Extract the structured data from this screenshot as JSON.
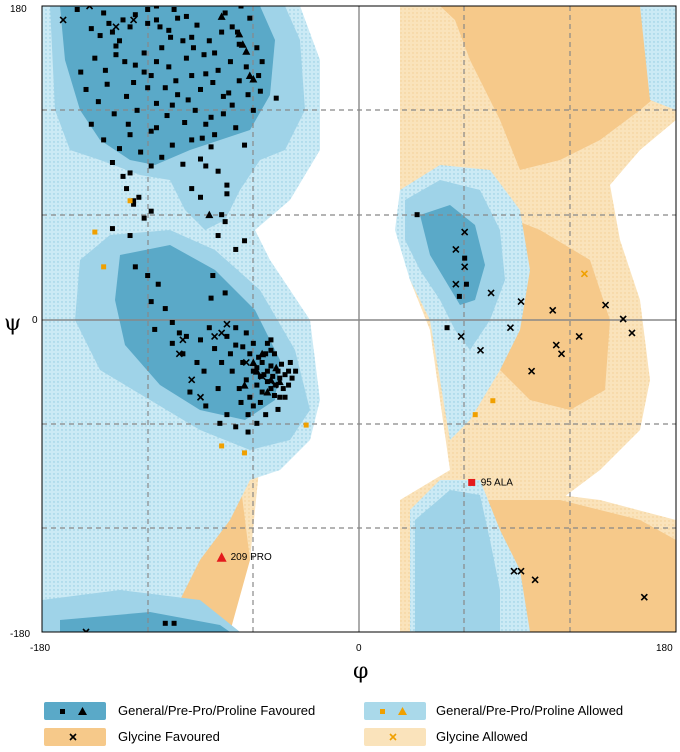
{
  "chart_data": {
    "type": "scatter",
    "title": "",
    "xlabel": "φ",
    "ylabel": "ψ",
    "xlim": [
      -180,
      180
    ],
    "ylim": [
      -180,
      180
    ],
    "x_ticks": [
      "-180",
      "0",
      "180"
    ],
    "y_ticks": [
      "180",
      "0",
      "-180"
    ],
    "grid": "dashed every 60°",
    "colors": {
      "general_favoured": "#5aa9c8",
      "general_allowed": "#aad9ea",
      "glycine_favoured": "#f6c98a",
      "glycine_allowed": "#fae3bb",
      "outlier": "#e41a1c",
      "allowed_marker": "#f0a000"
    },
    "series": [
      {
        "name": "General/Pre-Pro/Proline Favoured",
        "marker": "square",
        "points": [
          [
            -160,
            178
          ],
          [
            -147,
            163
          ],
          [
            -140,
            165
          ],
          [
            -136,
            160
          ],
          [
            -130,
            168
          ],
          [
            -127,
            175
          ],
          [
            -120,
            170
          ],
          [
            -115,
            172
          ],
          [
            -108,
            166
          ],
          [
            -103,
            173
          ],
          [
            -92,
            169
          ],
          [
            -85,
            160
          ],
          [
            -78,
            165
          ],
          [
            -72,
            168
          ],
          [
            -68,
            158
          ],
          [
            -62,
            173
          ],
          [
            -150,
            150
          ],
          [
            -144,
            143
          ],
          [
            -138,
            152
          ],
          [
            -133,
            148
          ],
          [
            -127,
            146
          ],
          [
            -122,
            153
          ],
          [
            -118,
            140
          ],
          [
            -112,
            156
          ],
          [
            -108,
            145
          ],
          [
            -104,
            137
          ],
          [
            -98,
            150
          ],
          [
            -95,
            140
          ],
          [
            -90,
            132
          ],
          [
            -88,
            152
          ],
          [
            -83,
            136
          ],
          [
            -80,
            143
          ],
          [
            -73,
            148
          ],
          [
            -68,
            137
          ],
          [
            -63,
            129
          ],
          [
            -56,
            131
          ],
          [
            -47,
            127
          ],
          [
            -155,
            132
          ],
          [
            -148,
            125
          ],
          [
            -143,
            135
          ],
          [
            -132,
            128
          ],
          [
            -126,
            120
          ],
          [
            -120,
            133
          ],
          [
            -115,
            124
          ],
          [
            -109,
            117
          ],
          [
            -103,
            129
          ],
          [
            -99,
            113
          ],
          [
            -93,
            120
          ],
          [
            -87,
            112
          ],
          [
            -82,
            106
          ],
          [
            -77,
            118
          ],
          [
            -70,
            110
          ],
          [
            -65,
            100
          ],
          [
            -60,
            120
          ],
          [
            -152,
            112
          ],
          [
            -145,
            103
          ],
          [
            -136,
            98
          ],
          [
            -130,
            106
          ],
          [
            -124,
            96
          ],
          [
            -118,
            108
          ],
          [
            -112,
            93
          ],
          [
            -106,
            100
          ],
          [
            -100,
            89
          ],
          [
            -95,
            103
          ],
          [
            -90,
            92
          ],
          [
            -84,
            99
          ],
          [
            -80,
            85
          ],
          [
            -75,
            77
          ],
          [
            -140,
            90
          ],
          [
            -134,
            82
          ],
          [
            -130,
            84
          ],
          [
            -128,
            66
          ],
          [
            -132,
            75
          ],
          [
            -118,
            88
          ],
          [
            -95,
            75
          ],
          [
            -90,
            70
          ],
          [
            -87,
            88
          ],
          [
            -125,
            70
          ],
          [
            -118,
            62
          ],
          [
            -122,
            58
          ],
          [
            -128,
            68
          ],
          [
            -75,
            72
          ],
          [
            -78,
            60
          ],
          [
            -76,
            56
          ],
          [
            -140,
            52
          ],
          [
            -130,
            48
          ],
          [
            -70,
            40
          ],
          [
            -65,
            45
          ],
          [
            -80,
            48
          ],
          [
            -115,
            180
          ],
          [
            -120,
            178
          ],
          [
            -105,
            178
          ],
          [
            -98,
            174
          ],
          [
            -142,
            170
          ],
          [
            -152,
            167
          ],
          [
            -138,
            157
          ],
          [
            -115,
            148
          ],
          [
            -100,
            160
          ],
          [
            -94,
            156
          ],
          [
            -158,
            142
          ],
          [
            -110,
            133
          ],
          [
            -77,
            128
          ],
          [
            -72,
            123
          ],
          [
            -64,
            145
          ],
          [
            -58,
            156
          ],
          [
            -115,
            110
          ],
          [
            -106,
            123
          ],
          [
            -97,
            126
          ],
          [
            -131,
            112
          ],
          [
            -139,
            118
          ],
          [
            -57,
            140
          ],
          [
            -55,
            148
          ],
          [
            -87,
            141
          ],
          [
            -145,
            176
          ],
          [
            -107,
            162
          ],
          [
            -82,
            153
          ],
          [
            -76,
            176
          ],
          [
            -67,
            180
          ],
          [
            -122,
            142
          ],
          [
            -95,
            162
          ],
          [
            -113,
            168
          ],
          [
            -74,
            130
          ],
          [
            -84,
            116
          ],
          [
            -89,
            104
          ],
          [
            -128,
            136
          ],
          [
            -134,
            172
          ],
          [
            -69,
            165
          ],
          [
            -127,
            30
          ],
          [
            -120,
            25
          ],
          [
            -114,
            20
          ],
          [
            -118,
            10
          ],
          [
            -110,
            6
          ],
          [
            -106,
            -2
          ],
          [
            -116,
            -6
          ],
          [
            -106,
            -14
          ],
          [
            -98,
            -10
          ],
          [
            -100,
            -20
          ],
          [
            -92,
            -25
          ],
          [
            -90,
            -12
          ],
          [
            -88,
            -30
          ],
          [
            -82,
            -17
          ],
          [
            -80,
            -40
          ],
          [
            -78,
            -25
          ],
          [
            -75,
            -55
          ],
          [
            -75,
            -10
          ],
          [
            -72,
            -30
          ],
          [
            -70,
            -5
          ],
          [
            -68,
            -40
          ],
          [
            -66,
            -25
          ],
          [
            -64,
            -35
          ],
          [
            -62,
            -45
          ],
          [
            -62,
            -20
          ],
          [
            -60,
            -30
          ],
          [
            -58,
            -38
          ],
          [
            -58,
            -28
          ],
          [
            -56,
            -33
          ],
          [
            -55,
            -42
          ],
          [
            -55,
            -25
          ],
          [
            -54,
            -32
          ],
          [
            -52,
            -36
          ],
          [
            -52,
            -30
          ],
          [
            -50,
            -40
          ],
          [
            -50,
            -27
          ],
          [
            -49,
            -33
          ],
          [
            -47,
            -38
          ],
          [
            -46,
            -30
          ],
          [
            -45,
            -34
          ],
          [
            -44,
            -26
          ],
          [
            -43,
            -40
          ],
          [
            -42,
            -32
          ],
          [
            -40,
            -30
          ],
          [
            -40,
            -38
          ],
          [
            -38,
            -34
          ],
          [
            -60,
            -50
          ],
          [
            -63,
            -55
          ],
          [
            -67,
            -48
          ],
          [
            -57,
            -22
          ],
          [
            -53,
            -20
          ],
          [
            -48,
            -20
          ],
          [
            -45,
            -45
          ],
          [
            -50,
            -18
          ],
          [
            -102,
            -8
          ],
          [
            -96,
            -42
          ],
          [
            -85,
            -5
          ],
          [
            -84,
            12
          ],
          [
            -83,
            25
          ],
          [
            -76,
            15
          ],
          [
            -70,
            -62
          ],
          [
            -64,
            -8
          ],
          [
            -60,
            -14
          ],
          [
            -70,
            -15
          ],
          [
            -50,
            -12
          ],
          [
            -56,
            -48
          ],
          [
            -46,
            -52
          ],
          [
            -63,
            -65
          ],
          [
            -48,
            -44
          ],
          [
            -42,
            -45
          ],
          [
            -39,
            -25
          ],
          [
            -53,
            -55
          ],
          [
            -58,
            -60
          ],
          [
            -36,
            -30
          ],
          [
            -73,
            -20
          ],
          [
            -79,
            -60
          ],
          [
            -87,
            -50
          ],
          [
            -66,
            -16
          ],
          [
            -52,
            -14
          ],
          [
            33,
            60
          ],
          [
            60,
            35
          ],
          [
            61,
            20
          ],
          [
            57,
            13
          ],
          [
            50,
            -5
          ],
          [
            -105,
            -175
          ],
          [
            -110,
            -175
          ]
        ]
      },
      {
        "name": "General/Pre-Pro/Proline Favoured",
        "marker": "triangle",
        "points": [
          [
            -66,
            158
          ],
          [
            -68,
            164
          ],
          [
            -64,
            154
          ],
          [
            -78,
            174
          ],
          [
            -62,
            140
          ],
          [
            -60,
            138
          ],
          [
            -85,
            60
          ],
          [
            -58,
            -30
          ],
          [
            -52,
            -42
          ],
          [
            -55,
            -20
          ],
          [
            -45,
            -36
          ],
          [
            -47,
            -28
          ],
          [
            -65,
            -38
          ],
          [
            -60,
            -25
          ],
          [
            -50,
            -35
          ]
        ]
      },
      {
        "name": "General/Pre-Pro/Proline Allowed",
        "marker": "square",
        "points": [
          [
            -130,
            68
          ],
          [
            -150,
            50
          ],
          [
            -145,
            30
          ],
          [
            -78,
            -73
          ],
          [
            -65,
            -77
          ],
          [
            -30,
            -61
          ],
          [
            76,
            -47
          ],
          [
            66,
            -55
          ]
        ]
      },
      {
        "name": "Glycine Favoured",
        "marker": "cross",
        "points": [
          [
            -168,
            172
          ],
          [
            -153,
            180
          ],
          [
            -138,
            168
          ],
          [
            -128,
            172
          ],
          [
            -85,
            183
          ],
          [
            -78,
            -8
          ],
          [
            -82,
            -10
          ],
          [
            -75,
            -3
          ],
          [
            -64,
            -25
          ],
          [
            -55,
            -33
          ],
          [
            -48,
            -38
          ],
          [
            -102,
            -20
          ],
          [
            -100,
            -12
          ],
          [
            -95,
            -35
          ],
          [
            -90,
            -45
          ],
          [
            -155,
            -180
          ],
          [
            -160,
            -182
          ],
          [
            60,
            50
          ],
          [
            55,
            40
          ],
          [
            60,
            30
          ],
          [
            55,
            20
          ],
          [
            58,
            -10
          ],
          [
            69,
            -18
          ],
          [
            75,
            15
          ],
          [
            86,
            -5
          ],
          [
            92,
            10
          ],
          [
            98,
            -30
          ],
          [
            110,
            5
          ],
          [
            112,
            -15
          ],
          [
            115,
            -20
          ],
          [
            125,
            -10
          ],
          [
            140,
            8
          ],
          [
            150,
            0
          ],
          [
            155,
            -8
          ],
          [
            88,
            -145
          ],
          [
            100,
            -150
          ],
          [
            162,
            -160
          ],
          [
            92,
            -145
          ]
        ]
      },
      {
        "name": "Glycine Allowed",
        "marker": "cross",
        "points": [
          [
            128,
            26
          ]
        ]
      }
    ],
    "outliers": [
      {
        "label": "95 ALA",
        "x": 64,
        "y": -94,
        "marker": "square"
      },
      {
        "label": "209 PRO",
        "x": -78,
        "y": -137,
        "marker": "triangle"
      }
    ]
  },
  "legend": {
    "items": [
      {
        "label": "General/Pre-Pro/Proline Favoured",
        "bg": "#5aa9c8",
        "marker": "square-triangle-black"
      },
      {
        "label": "General/Pre-Pro/Proline Allowed",
        "bg": "#aad9ea",
        "marker": "square-triangle-orange"
      },
      {
        "label": "Glycine Favoured",
        "bg": "#f6c98a",
        "marker": "cross-black"
      },
      {
        "label": "Glycine Allowed",
        "bg": "#fae3bb",
        "marker": "cross-orange"
      }
    ]
  }
}
